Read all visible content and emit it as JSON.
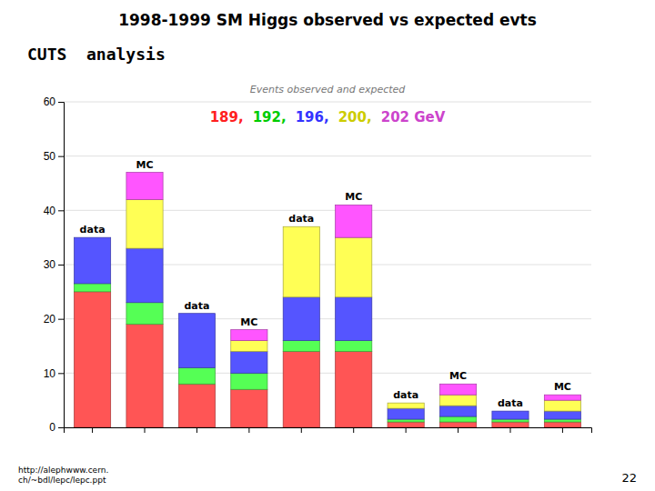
{
  "chart_data": {
    "type": "bar",
    "stacked": true,
    "title": "1998-1999 SM Higgs observed vs expected evts",
    "subtitle": "CUTS  analysis",
    "plot_title": "Events observed and expected",
    "footnote": "http://alephwww.cern.\nch/~bdl/lepc/lepc.ppt",
    "page_number": "22",
    "categories": [
      null,
      null,
      null,
      null,
      null,
      null,
      null,
      null,
      null,
      null
    ],
    "series": [
      {
        "color": "#ff5555",
        "values": [
          25,
          19,
          8,
          7,
          14,
          14,
          1,
          1,
          1,
          1
        ]
      },
      {
        "color": "#55ff55",
        "values": [
          1.5,
          4,
          3,
          3,
          2,
          2,
          0.5,
          1,
          0.5,
          0.5
        ]
      },
      {
        "color": "#5555ff",
        "values": [
          8.5,
          10,
          10,
          4,
          8,
          8,
          2,
          2,
          1.5,
          1.5
        ]
      },
      {
        "color": "#ffff55",
        "values": [
          0,
          9,
          0,
          2,
          13,
          11,
          1,
          2,
          0,
          2
        ]
      },
      {
        "color": "#ff55ff",
        "values": [
          0,
          5,
          0,
          2,
          0,
          6,
          0,
          2,
          0,
          1
        ]
      }
    ],
    "ylim": [
      0,
      60
    ],
    "yticks": [
      0,
      10,
      20,
      30,
      40,
      50,
      60
    ],
    "grid": true,
    "tick_labels": "y",
    "annotations": [
      {
        "text": "189,",
        "color": "#ff2020"
      },
      {
        "text": "192,",
        "color": "#00cc00"
      },
      {
        "text": "196,",
        "color": "#3333ff"
      },
      {
        "text": "200,",
        "color": "#cccc00"
      },
      {
        "text": "202 GeV",
        "color": "#cc44cc"
      },
      {
        "text": "data",
        "category": 0
      },
      {
        "text": "MC",
        "category": 1
      },
      {
        "text": "data",
        "category": 2
      },
      {
        "text": "MC",
        "category": 3
      },
      {
        "text": "data",
        "category": 4
      },
      {
        "text": "MC",
        "category": 5
      },
      {
        "text": "data",
        "category": 6
      },
      {
        "text": "MC",
        "category": 7
      },
      {
        "text": "data",
        "category": 8
      },
      {
        "text": "MC",
        "category": 9
      }
    ]
  }
}
